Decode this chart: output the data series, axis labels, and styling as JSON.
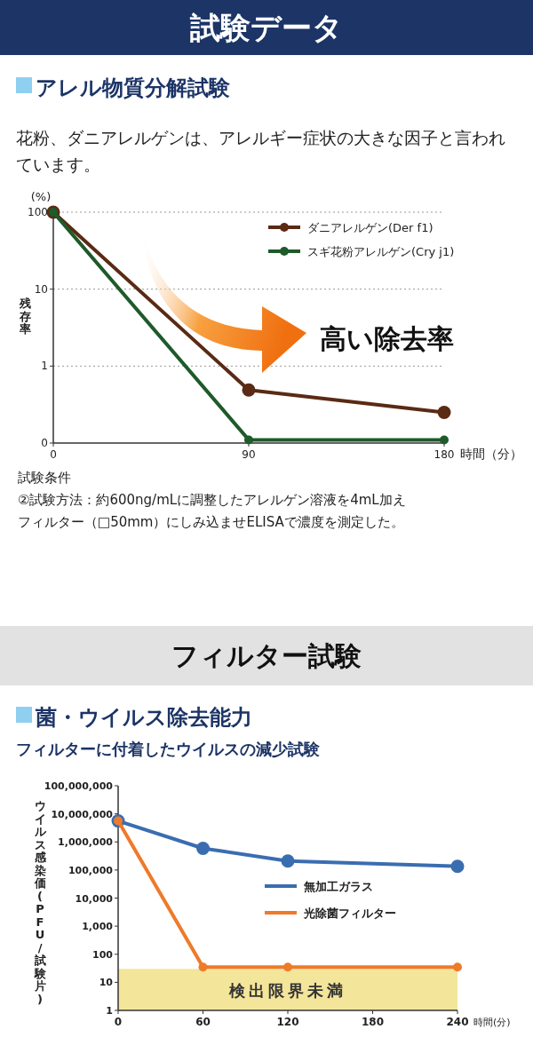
{
  "chart_data": [
    {
      "type": "line",
      "title": "アレル物質分解試験",
      "subtitle": "花粉、ダニアレルゲンは、アレルギー症状の大きな因子と言われています。",
      "ylabel": "残存率",
      "xlabel": "時間（分）",
      "log": "y",
      "grid": "y",
      "legend": "top right",
      "marker": "circle",
      "line_style": "solid",
      "x": [
        0,
        90,
        180
      ],
      "xlim": [
        0,
        180
      ],
      "xticks": [
        0,
        90,
        180
      ],
      "ylim": [
        0.1,
        100
      ],
      "yticks": [
        {
          "value": 0.1,
          "label": "0"
        },
        1,
        10,
        100
      ],
      "series": [
        {
          "name": "ダニアレルゲン(Der f1)",
          "color": "#5a2a14",
          "values": [
            100,
            0.49,
            0.25
          ]
        },
        {
          "name": "スギ花粉アレルゲン(Cry j1)",
          "color": "#1e5a2a",
          "values": [
            100,
            0.11,
            0.11
          ]
        }
      ],
      "annotations": [
        "試験データ",
        "(%)",
        "高い除去率",
        "試験条件",
        "②試験方法：約600ng/mLに調整したアレルゲン溶液を4mL加え",
        "フィルター（□50mm）にしみ込ませELISAで濃度を測定した。"
      ]
    },
    {
      "type": "line",
      "title": "菌・ウイルス除去能力",
      "subtitle": "フィルターに付着したウイルスの減少試験",
      "ylabel": "ウイルス感染価(PFU/試験片)",
      "xlabel": "時間(分)",
      "log": "y",
      "legend": "right",
      "marker": "circle",
      "line_style": "solid",
      "x": [
        0,
        60,
        120,
        240
      ],
      "xlim": [
        0,
        240
      ],
      "xticks": [
        0,
        60,
        120,
        180,
        240
      ],
      "ylim": [
        1,
        100000000
      ],
      "yticks": [
        1,
        10,
        100,
        {
          "value": 1000,
          "label": "1,000"
        },
        {
          "value": 10000,
          "label": "10,000"
        },
        {
          "value": 100000,
          "label": "100,000"
        },
        {
          "value": 1000000,
          "label": "1,000,000"
        },
        {
          "value": 10000000,
          "label": "10,000,000"
        },
        {
          "value": 100000000,
          "label": "100,000,000"
        }
      ],
      "series": [
        {
          "name": "無加工ガラス",
          "color": "#3a6db0",
          "values": [
            5600000,
            590000,
            210000,
            135000
          ]
        },
        {
          "name": "光除菌フィルター",
          "color": "#ee7a2a",
          "values": [
            5600000,
            35,
            35,
            35
          ]
        }
      ],
      "bands": [
        {
          "axis": "y",
          "from": 1,
          "to": 30,
          "label": "検出限界未満",
          "color": "#f3e59a"
        }
      ],
      "annotations": [
        "フィルター試験"
      ]
    }
  ]
}
